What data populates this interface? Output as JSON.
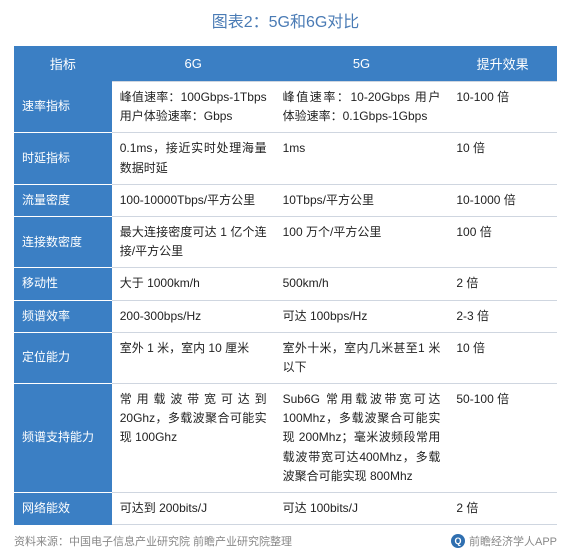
{
  "title": "图表2：5G和6G对比",
  "header_bg": "#3b7fc4",
  "columns": [
    "指标",
    "6G",
    "5G",
    "提升效果"
  ],
  "rows": [
    {
      "metric": "速率指标",
      "c6g": "峰值速率：100Gbps-1Tbps 用户体验速率：Gbps",
      "c5g": "峰值速率：10-20Gbps 用户体验速率：0.1Gbps-1Gbps",
      "improve": "10-100 倍"
    },
    {
      "metric": "时延指标",
      "c6g": "0.1ms，接近实时处理海量数据时延",
      "c5g": "1ms",
      "improve": "10 倍"
    },
    {
      "metric": "流量密度",
      "c6g": "100-10000Tbps/平方公里",
      "c5g": "10Tbps/平方公里",
      "improve": "10-1000 倍"
    },
    {
      "metric": "连接数密度",
      "c6g": "最大连接密度可达 1 亿个连接/平方公里",
      "c5g": "100 万个/平方公里",
      "improve": "100 倍"
    },
    {
      "metric": "移动性",
      "c6g": "大于 1000km/h",
      "c5g": "500km/h",
      "improve": "2 倍"
    },
    {
      "metric": "频谱效率",
      "c6g": "200-300bps/Hz",
      "c5g": "可达 100bps/Hz",
      "improve": "2-3 倍"
    },
    {
      "metric": "定位能力",
      "c6g": "室外 1 米，室内 10 厘米",
      "c5g": "室外十米，室内几米甚至1 米以下",
      "improve": "10 倍"
    },
    {
      "metric": "频谱支持能力",
      "c6g": "常用载波带宽可达到20Ghz，多载波聚合可能实现 100Ghz",
      "c5g": "Sub6G 常用载波带宽可达100Mhz，多载波聚合可能实现 200Mhz；毫米波频段常用载波带宽可达400Mhz，多载波聚合可能实现 800Mhz",
      "improve": "50-100 倍"
    },
    {
      "metric": "网络能效",
      "c6g": "可达到 200bits/J",
      "c5g": "可达 100bits/J",
      "improve": "2 倍"
    }
  ],
  "footer": {
    "source": "资料来源：中国电子信息产业研究院 前瞻产业研究院整理",
    "app": "前瞻经济学人APP"
  }
}
